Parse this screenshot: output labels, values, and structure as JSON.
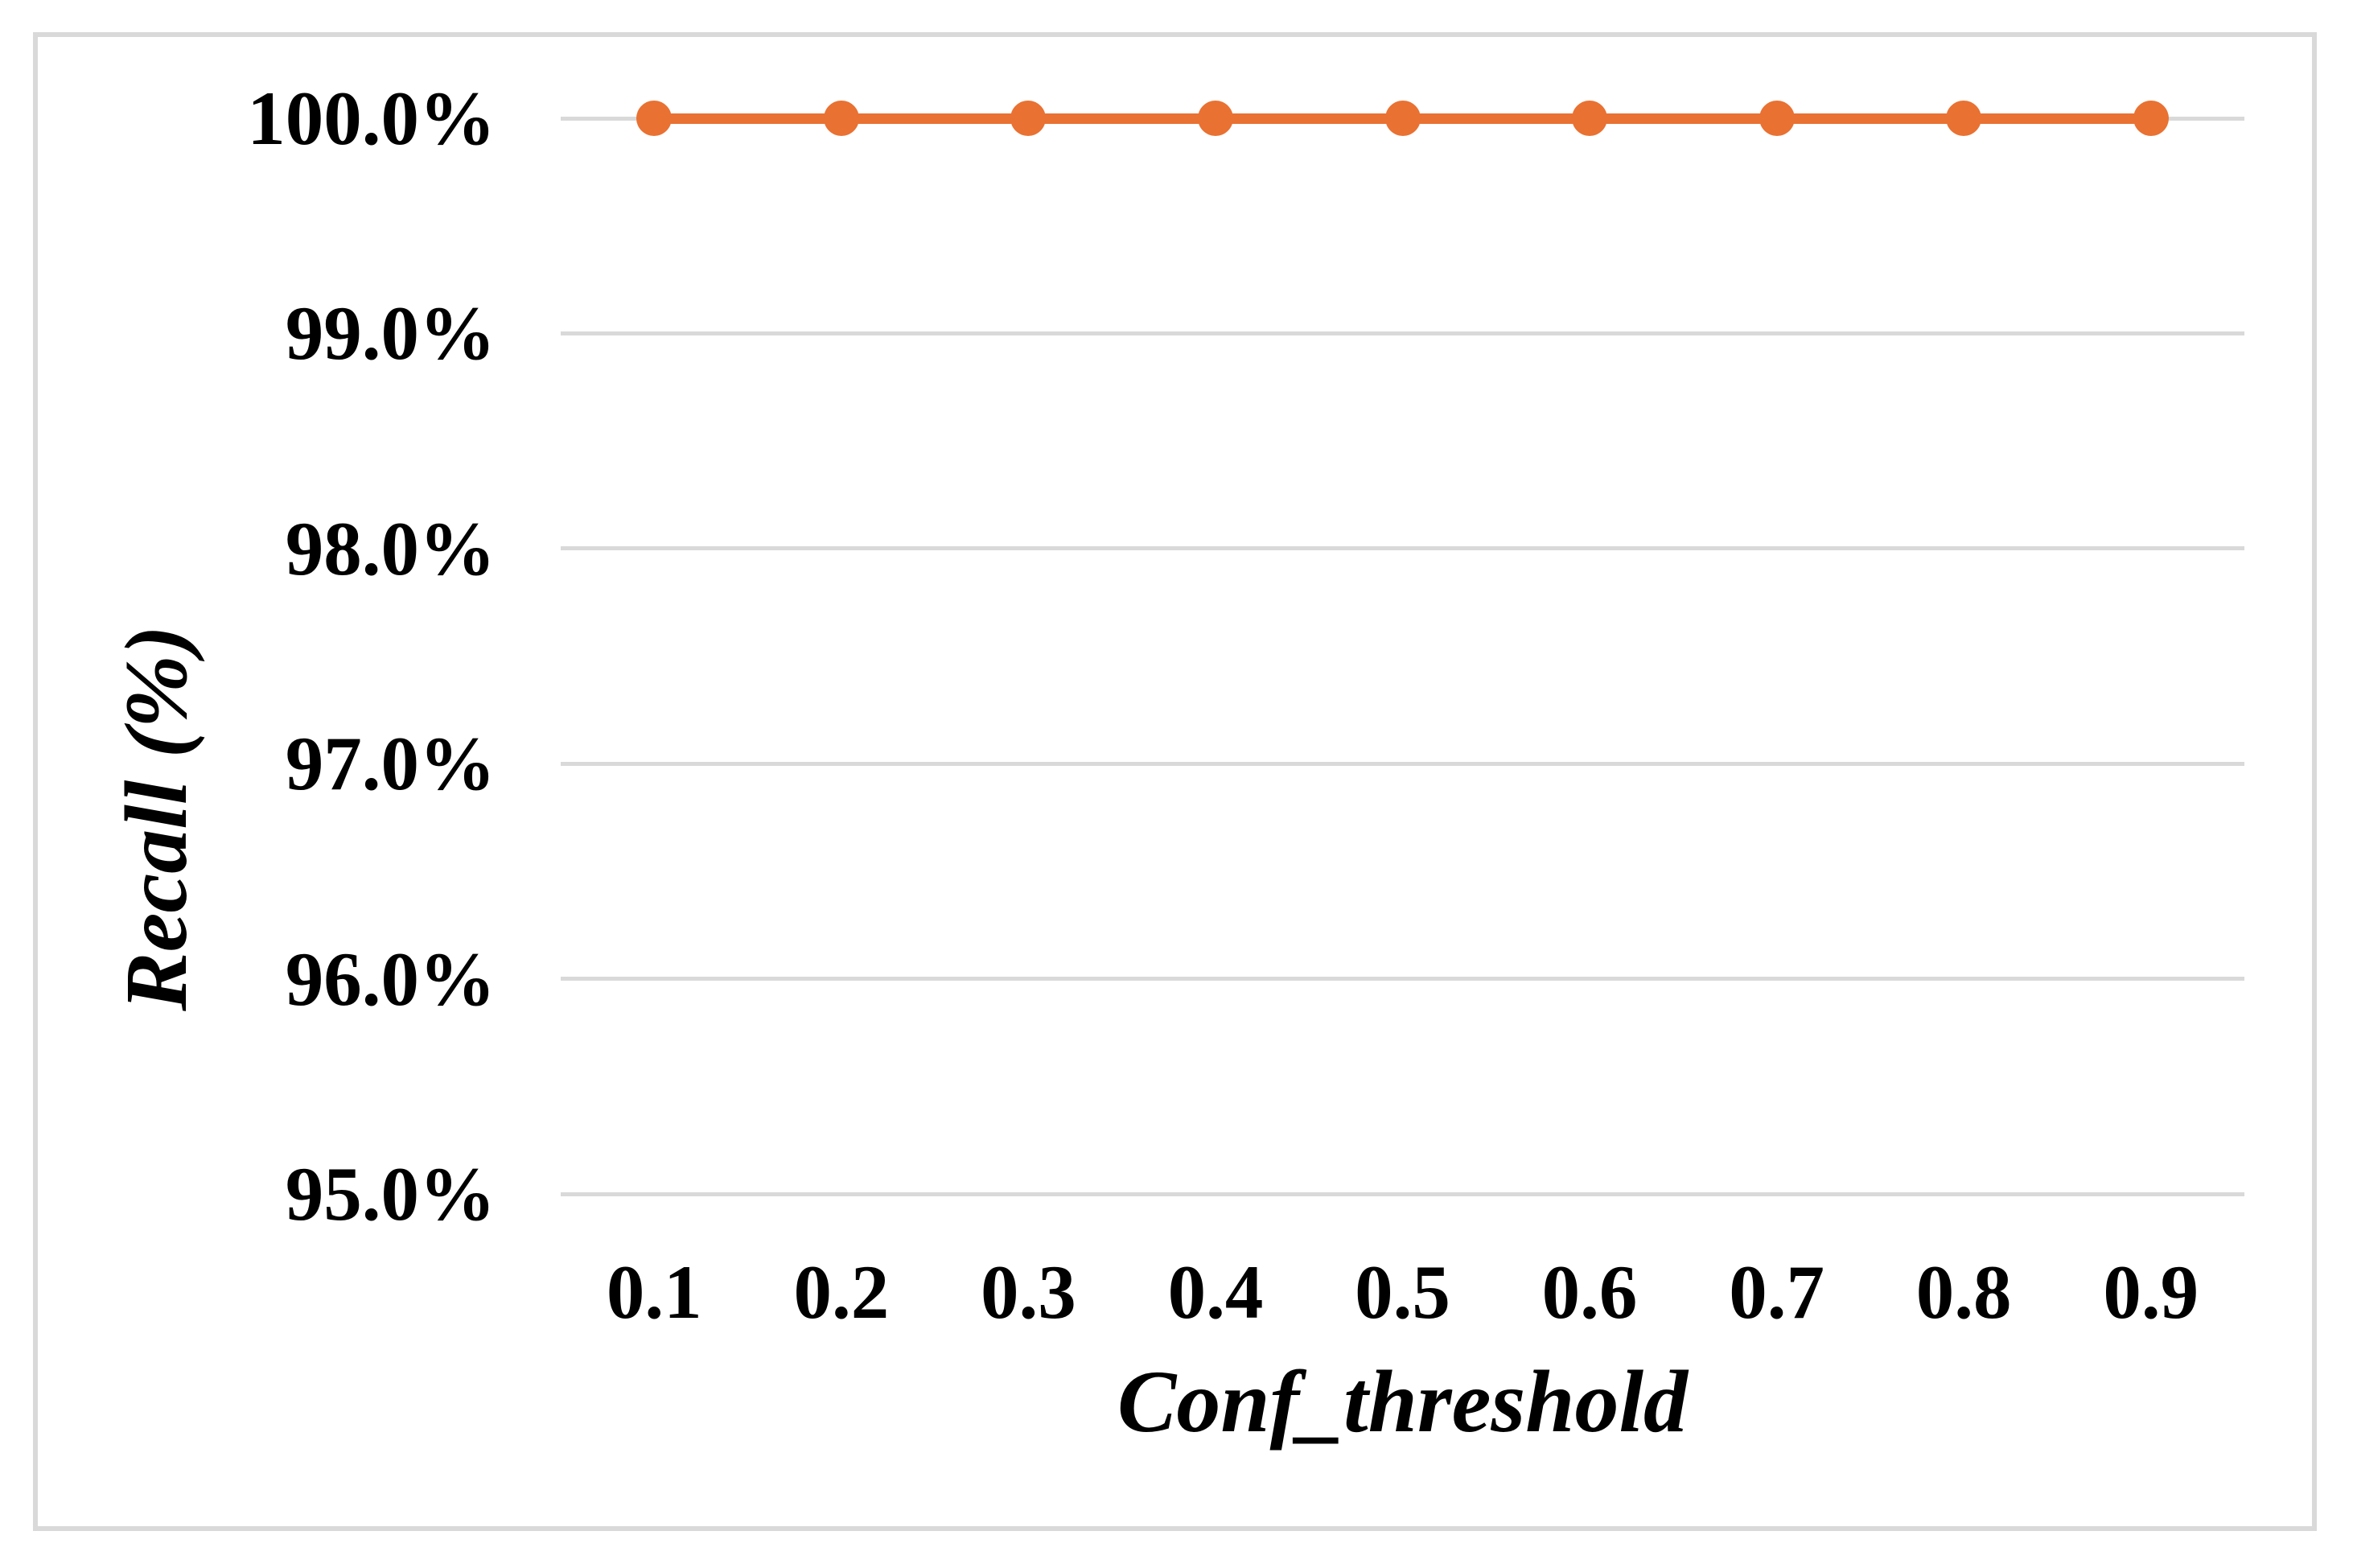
{
  "figure": {
    "background_color": "#FFFFFF",
    "frame_border_color": "#D9D9D9"
  },
  "chart_data": {
    "type": "line",
    "title": "",
    "xlabel": "Conf_threshold",
    "ylabel": "Recall (%)",
    "categories": [
      "0.1",
      "0.2",
      "0.3",
      "0.4",
      "0.5",
      "0.6",
      "0.7",
      "0.8",
      "0.9"
    ],
    "series": [
      {
        "name": "Recall",
        "color": "#E97132",
        "marker": "circle",
        "values": [
          100.0,
          100.0,
          100.0,
          100.0,
          100.0,
          100.0,
          100.0,
          100.0,
          100.0
        ]
      }
    ],
    "y_tick_labels": [
      "100.0%",
      "99.0%",
      "98.0%",
      "97.0%",
      "96.0%",
      "95.0%"
    ],
    "ylim": [
      95.0,
      100.0
    ],
    "y_tick_step": 1.0,
    "grid": true,
    "gridline_color": "#D9D9D9",
    "legend_position": "none"
  }
}
